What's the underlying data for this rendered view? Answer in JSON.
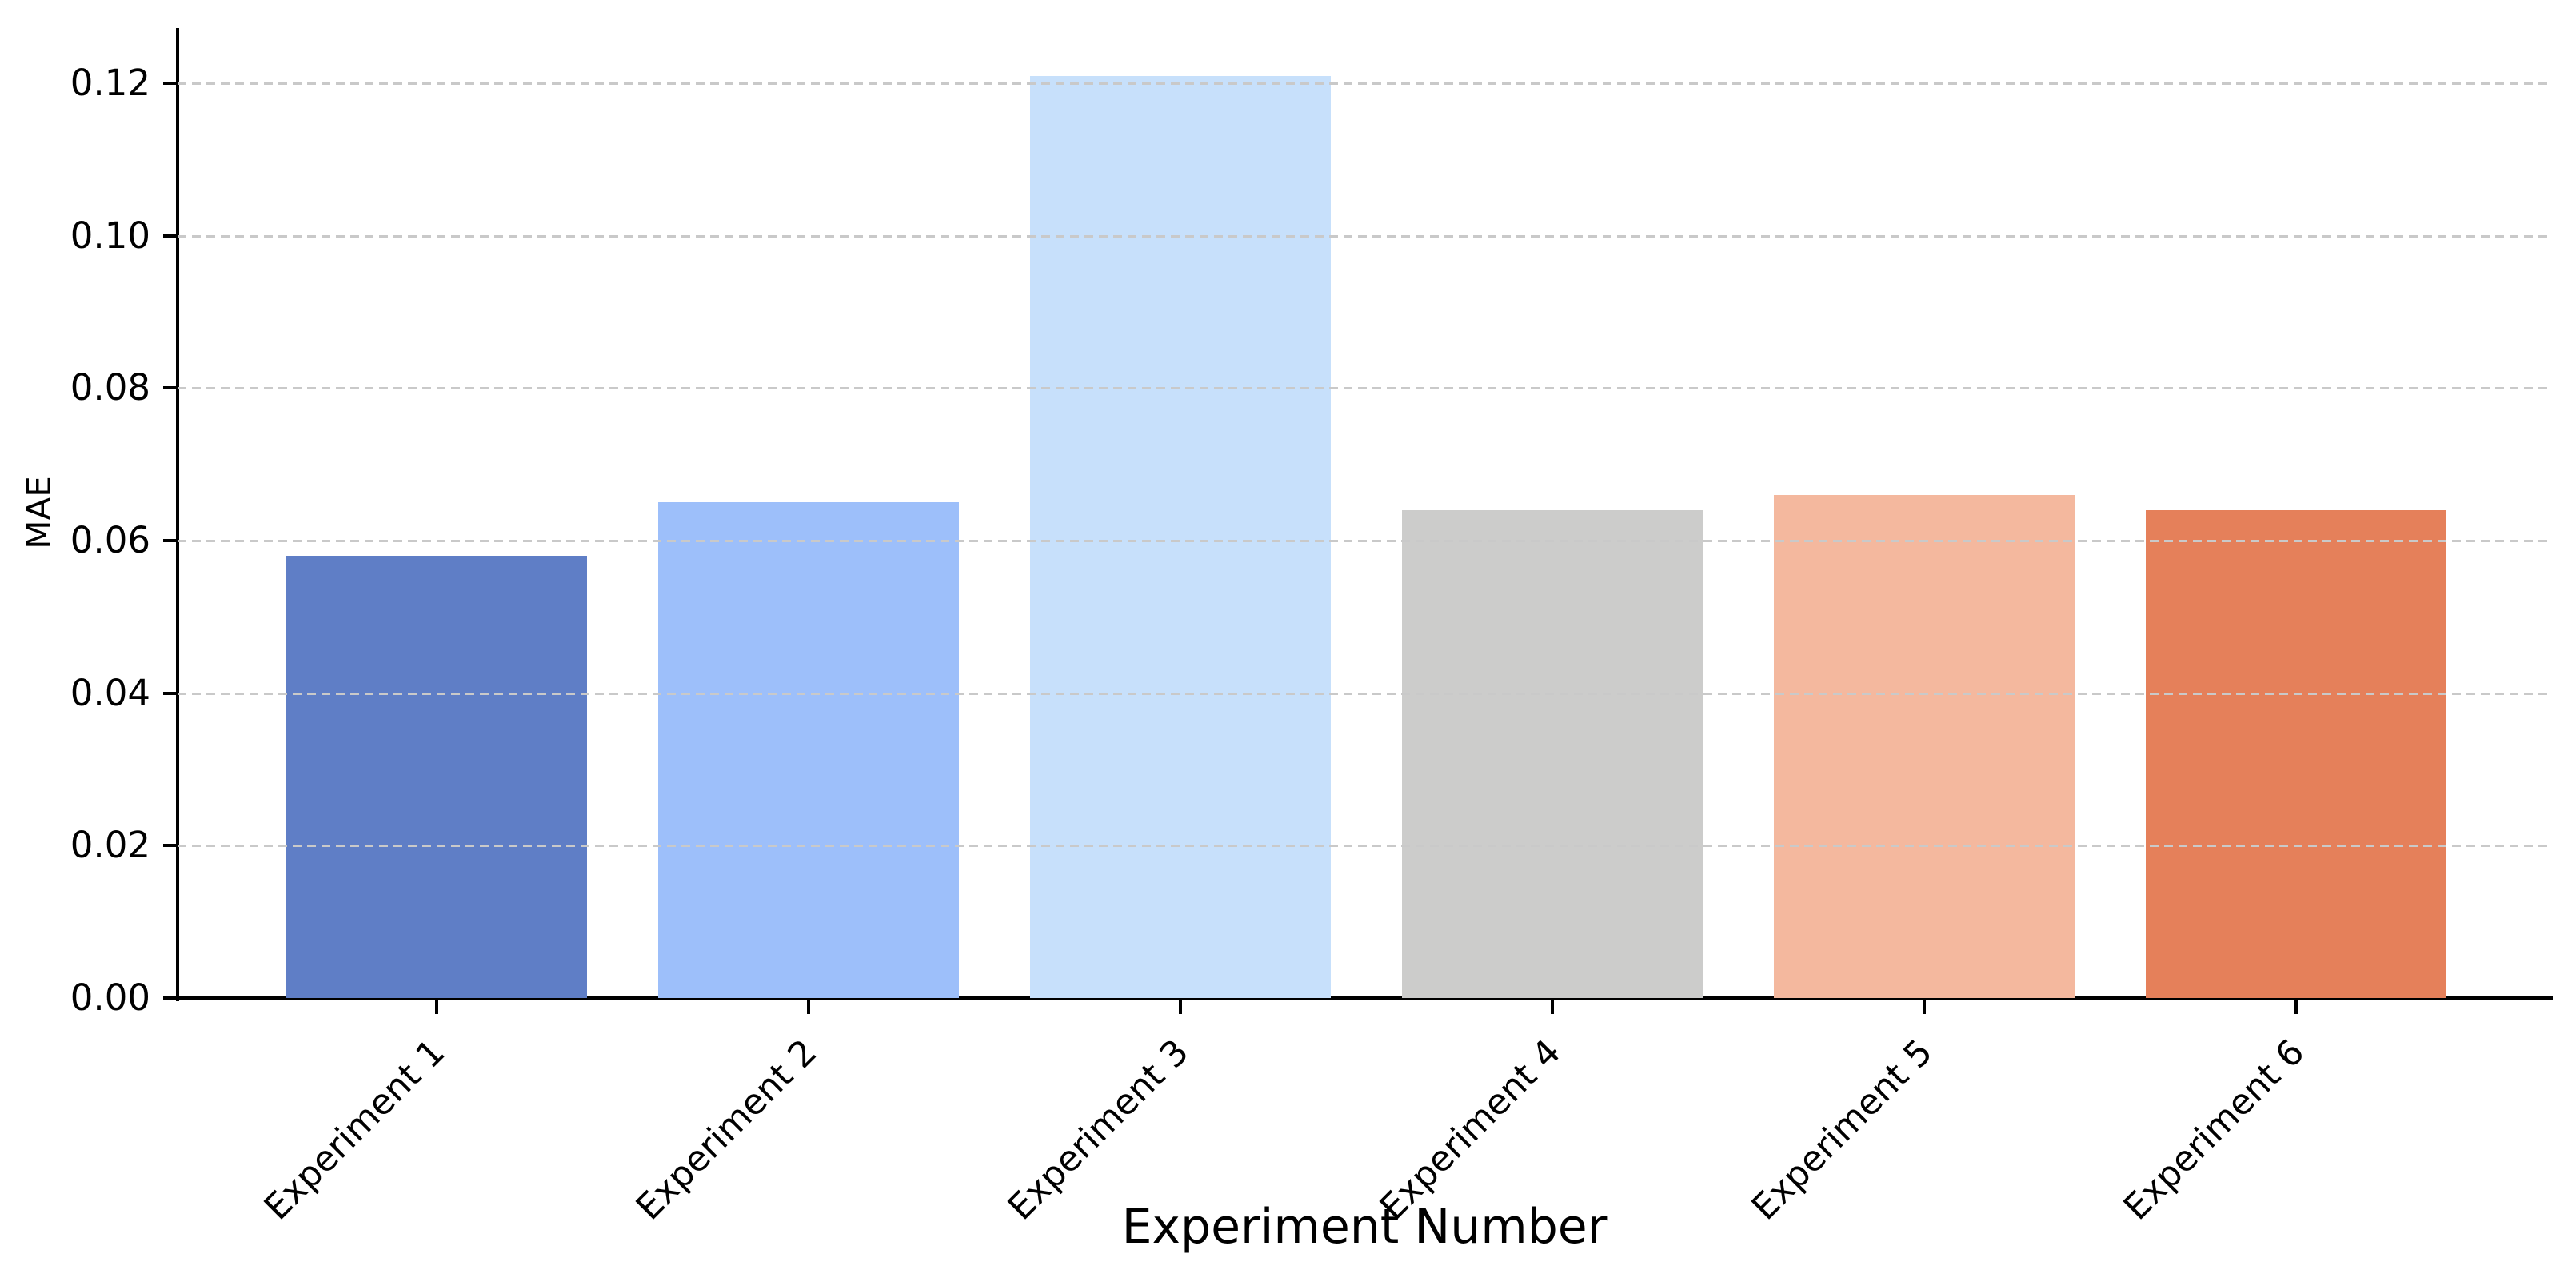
{
  "chart_data": {
    "type": "bar",
    "title": "",
    "xlabel": "Experiment Number",
    "ylabel": "MAE",
    "categories": [
      "Experiment 1",
      "Experiment 2",
      "Experiment 3",
      "Experiment 4",
      "Experiment 5",
      "Experiment 6"
    ],
    "values": [
      0.058,
      0.065,
      0.121,
      0.064,
      0.066,
      0.064
    ],
    "bar_colors": [
      "#5f7ec6",
      "#9dbffa",
      "#c7e0fb",
      "#cccccb",
      "#f4b89e",
      "#e5805a"
    ],
    "ytick_labels": [
      "0.00",
      "0.02",
      "0.04",
      "0.06",
      "0.08",
      "0.10",
      "0.12"
    ],
    "ytick_values": [
      0.0,
      0.02,
      0.04,
      0.06,
      0.08,
      0.1,
      0.12
    ],
    "ylim": [
      0,
      0.1272
    ],
    "xlim_categories": [
      -0.7,
      5.7
    ],
    "xtick_rotation_deg": 45,
    "grid": {
      "axis": "y",
      "style": "dashed",
      "color": "#c9c9c9",
      "drawn_above_bars": true
    },
    "legend": null,
    "background_color": "#ffffff",
    "axis_color": "#000000"
  }
}
